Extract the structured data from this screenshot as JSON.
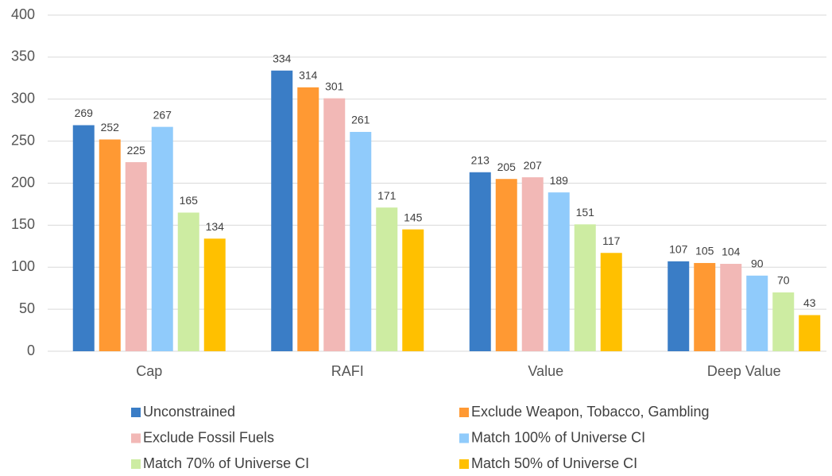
{
  "chart_data": {
    "type": "bar",
    "categories": [
      "Cap",
      "RAFI",
      "Value",
      "Deep Value"
    ],
    "series": [
      {
        "name": "Unconstrained",
        "color": "#3a7dc6",
        "values": [
          269,
          334,
          213,
          107
        ]
      },
      {
        "name": "Exclude Weapon, Tobacco, Gambling",
        "color": "#ff9933",
        "values": [
          252,
          314,
          205,
          105
        ]
      },
      {
        "name": "Exclude Fossil Fuels",
        "color": "#f2b8b6",
        "values": [
          225,
          301,
          207,
          104
        ]
      },
      {
        "name": "Match 100% of Universe CI",
        "color": "#90cbfb",
        "values": [
          267,
          261,
          189,
          90
        ]
      },
      {
        "name": "Match 70% of Universe CI",
        "color": "#cdeca2",
        "values": [
          165,
          171,
          151,
          70
        ]
      },
      {
        "name": "Match 50% of Universe CI",
        "color": "#ffc000",
        "values": [
          134,
          145,
          117,
          43
        ]
      }
    ],
    "ylim": [
      0,
      400
    ],
    "yticks": [
      0,
      50,
      100,
      150,
      200,
      250,
      300,
      350,
      400
    ],
    "grid": true,
    "legend": "bottom"
  }
}
